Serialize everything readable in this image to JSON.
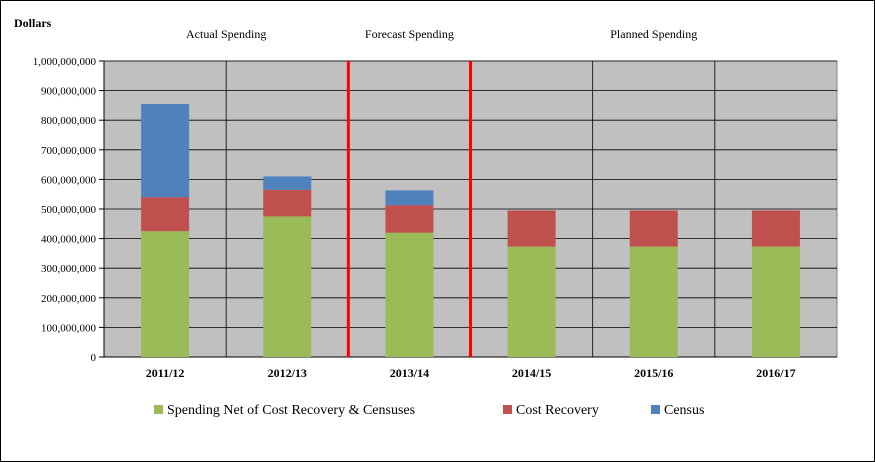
{
  "chart_data": {
    "type": "bar",
    "stacked": true,
    "ylabel": "Dollars",
    "xlabel": "",
    "ylim": [
      0,
      1000000000
    ],
    "yticks": [
      0,
      100000000,
      200000000,
      300000000,
      400000000,
      500000000,
      600000000,
      700000000,
      800000000,
      900000000,
      1000000000
    ],
    "ytick_labels": [
      "0",
      "100,000,000",
      "200,000,000",
      "300,000,000",
      "400,000,000",
      "500,000,000",
      "600,000,000",
      "700,000,000",
      "800,000,000",
      "900,000,000",
      "1,000,000,000"
    ],
    "categories": [
      "2011/12",
      "2012/13",
      "2013/14",
      "2014/15",
      "2015/16",
      "2016/17"
    ],
    "series": [
      {
        "name": "Spending Net of Cost Recovery & Censuses",
        "color": "#9bbb59",
        "values": [
          425000000,
          475000000,
          420000000,
          373000000,
          373000000,
          373000000
        ]
      },
      {
        "name": "Cost Recovery",
        "color": "#c0504d",
        "values": [
          115000000,
          90000000,
          93000000,
          122000000,
          122000000,
          122000000
        ]
      },
      {
        "name": "Census",
        "color": "#4f81bd",
        "values": [
          315000000,
          45000000,
          50000000,
          0,
          0,
          0
        ]
      }
    ],
    "sections": [
      {
        "label": "Actual Spending"
      },
      {
        "label": "Forecast Spending"
      },
      {
        "label": "Planned Spending"
      }
    ],
    "dividers_after_category": [
      1,
      2
    ],
    "divider_color": "#ff0000",
    "plot_background": "#c0c0c0",
    "grid": true,
    "legend_position": "bottom"
  }
}
